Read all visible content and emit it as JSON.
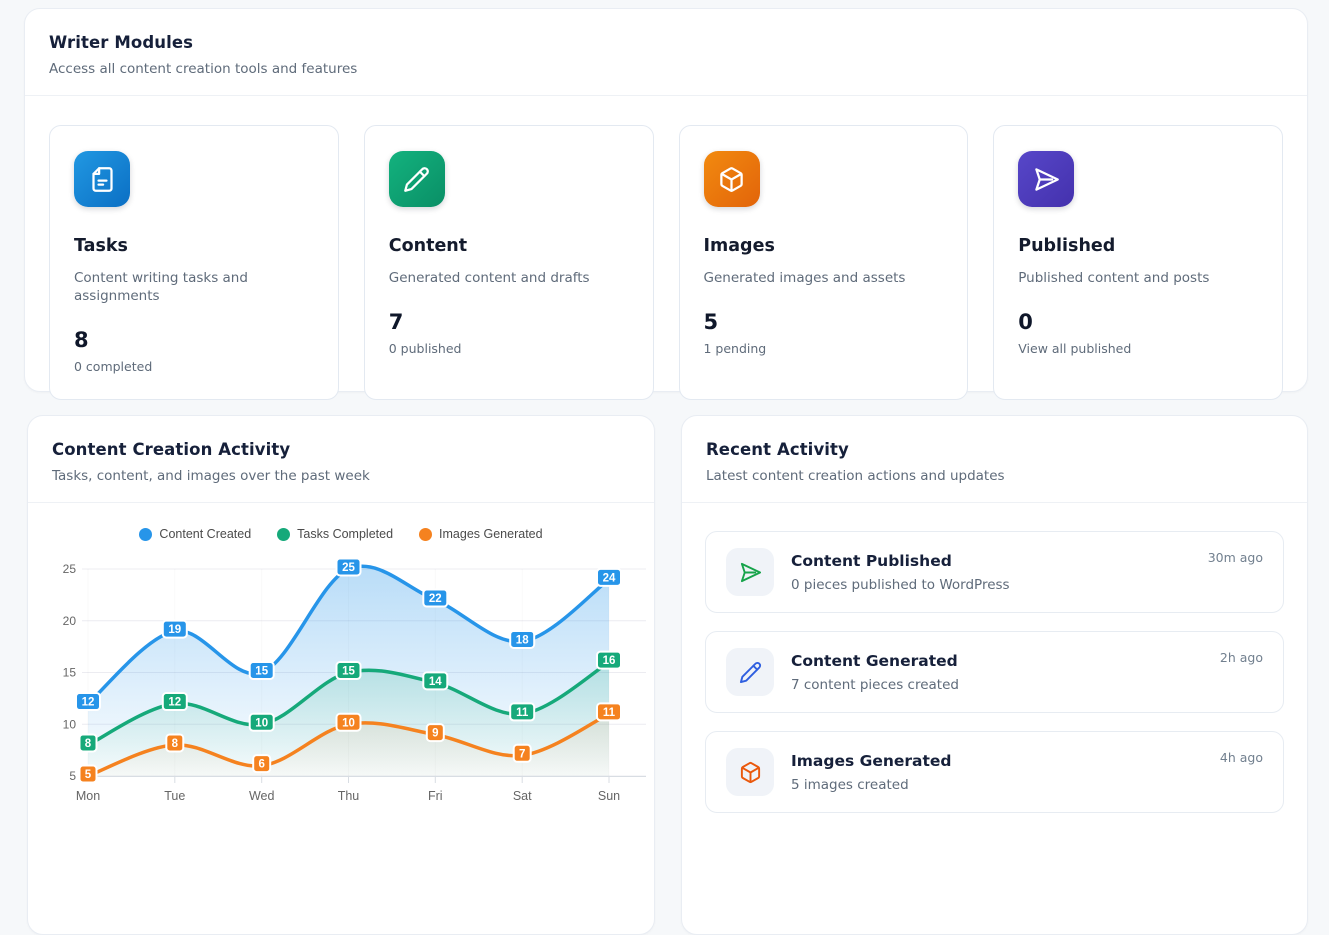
{
  "colors": {
    "blue": "#2795e9",
    "green": "#16a97a",
    "orange": "#f5821f",
    "purple": "#5040be",
    "activity_green": "#16a34a",
    "activity_blue": "#2f5fe0",
    "activity_orange": "#ea580c",
    "page_bg": "#f6f8fa",
    "card_border": "#e3e9f1",
    "muted_text": "#5f6b7a"
  },
  "modules_panel": {
    "title": "Writer Modules",
    "subtitle": "Access all content creation tools and features",
    "items": [
      {
        "title": "Tasks",
        "description": "Content writing tasks and assignments",
        "count": "8",
        "sub_label": "0 completed",
        "icon": "file-text-icon",
        "color": "blue"
      },
      {
        "title": "Content",
        "description": "Generated content and drafts",
        "count": "7",
        "sub_label": "0 published",
        "icon": "pencil-icon",
        "color": "green"
      },
      {
        "title": "Images",
        "description": "Generated images and assets",
        "count": "5",
        "sub_label": "1 pending",
        "icon": "cube-icon",
        "color": "orange"
      },
      {
        "title": "Published",
        "description": "Published content and posts",
        "count": "0",
        "sub_label": "View all published",
        "icon": "send-icon",
        "color": "purple"
      }
    ]
  },
  "chart_panel": {
    "title": "Content Creation Activity",
    "subtitle": "Tasks, content, and images over the past week"
  },
  "chart_data": {
    "type": "line",
    "categories": [
      "Mon",
      "Tue",
      "Wed",
      "Thu",
      "Fri",
      "Sat",
      "Sun"
    ],
    "series": [
      {
        "name": "Content Created",
        "color": "#2795e9",
        "values": [
          12,
          19,
          15,
          25,
          22,
          18,
          24
        ]
      },
      {
        "name": "Tasks Completed",
        "color": "#16a97a",
        "values": [
          8,
          12,
          10,
          15,
          14,
          11,
          16
        ]
      },
      {
        "name": "Images Generated",
        "color": "#f5821f",
        "values": [
          5,
          8,
          6,
          10,
          9,
          7,
          11
        ]
      }
    ],
    "title": "Content Creation Activity",
    "xlabel": "",
    "ylabel": "",
    "ylim": [
      5,
      25
    ],
    "yticks": [
      5,
      10,
      15,
      20,
      25
    ],
    "grid": true,
    "legend_position": "top",
    "style": "smooth curves, gradient area fill to baseline, point value labels in colored rounded badges"
  },
  "activity_panel": {
    "title": "Recent Activity",
    "subtitle": "Latest content creation actions and updates",
    "items": [
      {
        "title": "Content Published",
        "description": "0 pieces published to WordPress",
        "time": "30m ago",
        "icon": "send-icon",
        "icon_color": "#16a34a"
      },
      {
        "title": "Content Generated",
        "description": "7 content pieces created",
        "time": "2h ago",
        "icon": "pencil-icon",
        "icon_color": "#2f5fe0"
      },
      {
        "title": "Images Generated",
        "description": "5 images created",
        "time": "4h ago",
        "icon": "cube-icon",
        "icon_color": "#ea580c"
      }
    ]
  }
}
